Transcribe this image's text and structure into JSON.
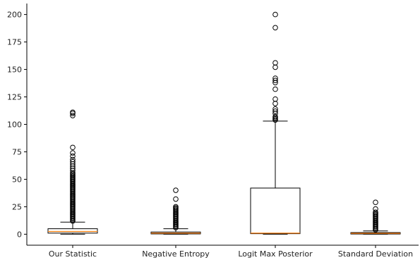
{
  "chart_data": {
    "type": "box",
    "title": "",
    "xlabel": "",
    "ylabel": "",
    "ylim": [
      -10,
      210
    ],
    "yticks": [
      0,
      25,
      50,
      75,
      100,
      125,
      150,
      175,
      200
    ],
    "ytick_labels": [
      "0",
      "25",
      "50",
      "75",
      "100",
      "125",
      "150",
      "175",
      "200"
    ],
    "categories": [
      "Our Statistic",
      "Negative Entropy",
      "Logit Max Posterior",
      "Standard Deviation"
    ],
    "series": [
      {
        "category": "Our Statistic",
        "whisker_low": 0,
        "q1": 1,
        "median": 2.5,
        "q3": 5,
        "whisker_high": 11,
        "outliers": [
          12,
          13,
          14,
          15,
          16,
          17,
          18,
          19,
          20,
          21,
          22,
          23,
          24,
          25,
          26,
          27,
          28,
          29,
          30,
          31,
          32,
          33,
          34,
          35,
          36,
          37,
          38,
          39,
          40,
          41,
          42,
          43,
          44,
          45,
          46,
          47,
          48,
          49,
          50,
          51,
          52,
          53,
          54,
          55,
          56,
          58,
          60,
          62,
          64,
          66,
          68,
          71,
          74,
          79,
          108,
          110,
          111
        ]
      },
      {
        "category": "Negative Entropy",
        "whisker_low": 0,
        "q1": 0.3,
        "median": 1,
        "q3": 2,
        "whisker_high": 5,
        "outliers": [
          6,
          7,
          8,
          9,
          10,
          11,
          12,
          13,
          14,
          15,
          16,
          17,
          18,
          19,
          20,
          21,
          22,
          23,
          24,
          25,
          32,
          40
        ]
      },
      {
        "category": "Logit Max Posterior",
        "whisker_low": 0,
        "q1": 0.5,
        "median": 1,
        "q3": 42,
        "whisker_high": 103,
        "outliers": [
          104,
          105,
          106,
          107,
          110,
          112,
          114,
          119,
          123,
          132,
          138,
          140,
          142,
          152,
          156,
          188,
          200
        ]
      },
      {
        "category": "Standard Deviation",
        "whisker_low": 0,
        "q1": 0.2,
        "median": 0.8,
        "q3": 1.5,
        "whisker_high": 3,
        "outliers": [
          4,
          5,
          6,
          7,
          8,
          9,
          10,
          11,
          12,
          13,
          14,
          15,
          16,
          17,
          18,
          19,
          20,
          23,
          29
        ]
      }
    ],
    "colors": {
      "box": "#000000",
      "median": "#ff7f0e",
      "outlier": "#000000",
      "axis": "#000000"
    },
    "grid": false,
    "legend": "none"
  }
}
